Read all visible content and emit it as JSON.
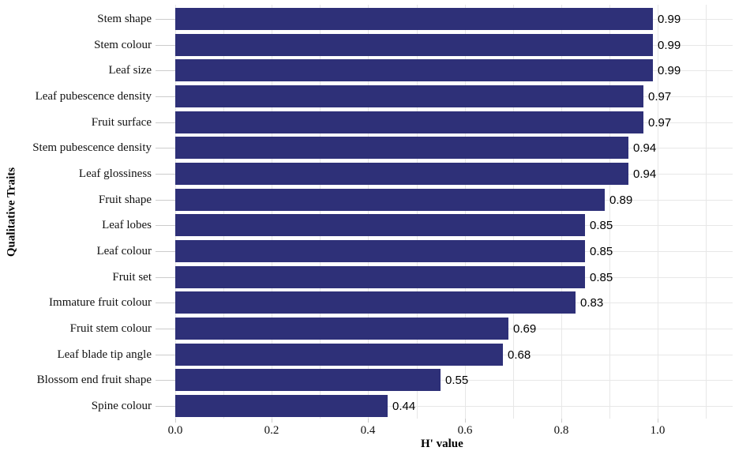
{
  "chart_data": {
    "type": "bar",
    "orientation": "horizontal",
    "title": "",
    "xlabel": "H' value",
    "ylabel": "Qualitative Traits",
    "categories": [
      "Stem shape",
      "Stem colour",
      "Leaf size",
      "Leaf pubescence density",
      "Fruit surface",
      "Stem pubescence density",
      "Leaf glossiness",
      "Fruit shape",
      "Leaf lobes",
      "Leaf colour",
      "Fruit set",
      "Immature fruit colour",
      "Fruit stem colour",
      "Leaf blade tip angle",
      "Blossom end fruit shape",
      "Spine colour"
    ],
    "values": [
      0.99,
      0.99,
      0.99,
      0.97,
      0.97,
      0.94,
      0.94,
      0.89,
      0.85,
      0.85,
      0.85,
      0.83,
      0.69,
      0.68,
      0.55,
      0.44
    ],
    "value_labels": [
      "0.99",
      "0.99",
      "0.99",
      "0.97",
      "0.97",
      "0.94",
      "0.94",
      "0.89",
      "0.85",
      "0.85",
      "0.85",
      "0.83",
      "0.69",
      "0.68",
      "0.55",
      "0.44"
    ],
    "xlim": [
      0,
      1.15
    ],
    "xticks": [
      0.0,
      0.2,
      0.4,
      0.6,
      0.8,
      1.0
    ],
    "xtick_labels": [
      "0.0",
      "0.2",
      "0.4",
      "0.6",
      "0.8",
      "1.0"
    ],
    "grid": "on",
    "grid_interval": 0.1,
    "legend": "none",
    "colors": {
      "bar": "#2e3078",
      "grid": "#e7e7e7",
      "tick": "#cccccc",
      "text": "#000000",
      "background": "#ffffff"
    }
  }
}
